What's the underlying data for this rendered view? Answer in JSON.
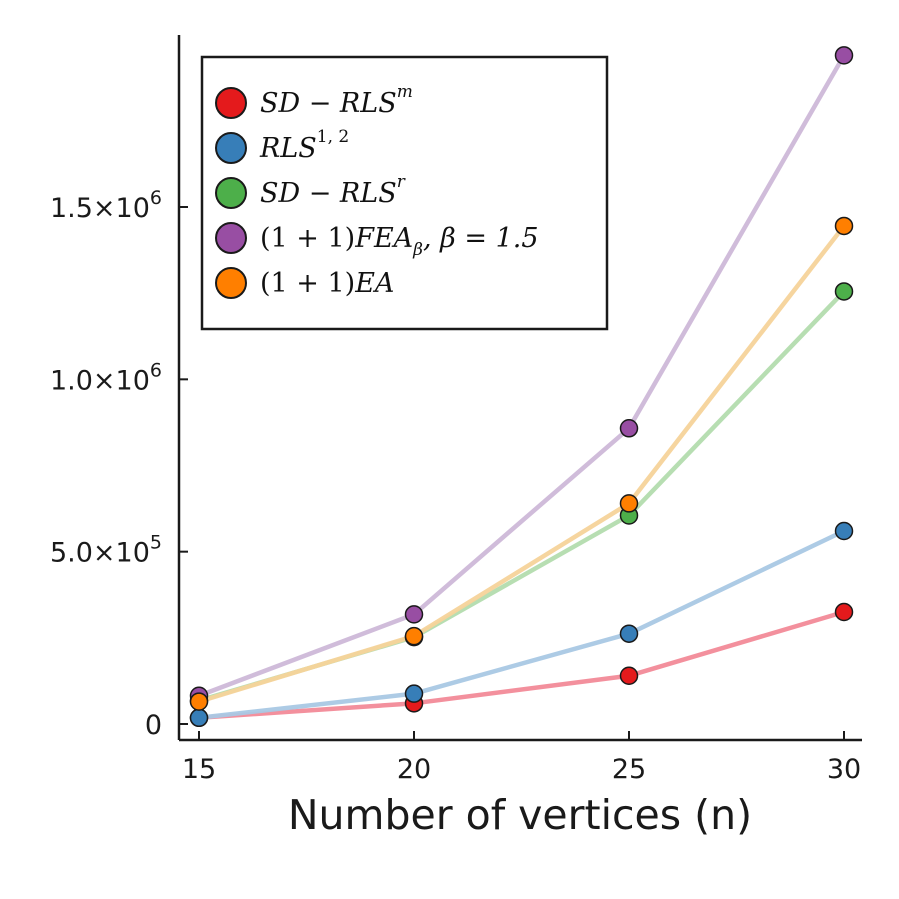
{
  "chart_data": {
    "type": "line",
    "title": "",
    "xlabel": "Number of vertices (n)",
    "ylabel": "",
    "x": [
      15,
      20,
      25,
      30
    ],
    "xlim": [
      14.5,
      30.4
    ],
    "ylim": [
      -25000,
      2000000
    ],
    "x_ticks": [
      15,
      20,
      25,
      30
    ],
    "x_tick_labels": [
      "15",
      "20",
      "25",
      "30"
    ],
    "y_ticks": [
      0,
      500000,
      1000000,
      1500000
    ],
    "y_tick_labels": [
      {
        "base": "0",
        "exp": ""
      },
      {
        "base": "5.0×10",
        "exp": "5"
      },
      {
        "base": "1.0×10",
        "exp": "6"
      },
      {
        "base": "1.5×10",
        "exp": "6"
      }
    ],
    "grid": false,
    "legend_position": "top-left",
    "series": [
      {
        "legend": {
          "main": "SD − RLS",
          "sup": "m",
          "sup_italic": true
        },
        "color": "#e41a1c",
        "line_color": "#f28a98",
        "values": [
          18000,
          60000,
          140000,
          325000
        ]
      },
      {
        "legend": {
          "main": "RLS",
          "sup": "1, 2",
          "sup_italic": false
        },
        "color": "#377eb8",
        "line_color": "#a9c8e4",
        "values": [
          18000,
          88000,
          262000,
          560000
        ]
      },
      {
        "legend": {
          "main": "SD − RLS",
          "sup": "r",
          "sup_italic": true
        },
        "color": "#4daf4a",
        "line_color": "#b3dcae",
        "values": [
          68000,
          252000,
          605000,
          1255000
        ]
      },
      {
        "legend": {
          "pre": "(1 + 1)",
          "main": "FEA",
          "sub": "β",
          "post": ", β = 1.5"
        },
        "color": "#984ea3",
        "line_color": "#cdb8d8",
        "values": [
          82000,
          318000,
          858000,
          1940000
        ]
      },
      {
        "legend": {
          "pre": "(1 + 1)",
          "main": "EA"
        },
        "color": "#ff7f00",
        "line_color": "#f6d39a",
        "values": [
          65000,
          255000,
          640000,
          1445000
        ]
      }
    ]
  }
}
